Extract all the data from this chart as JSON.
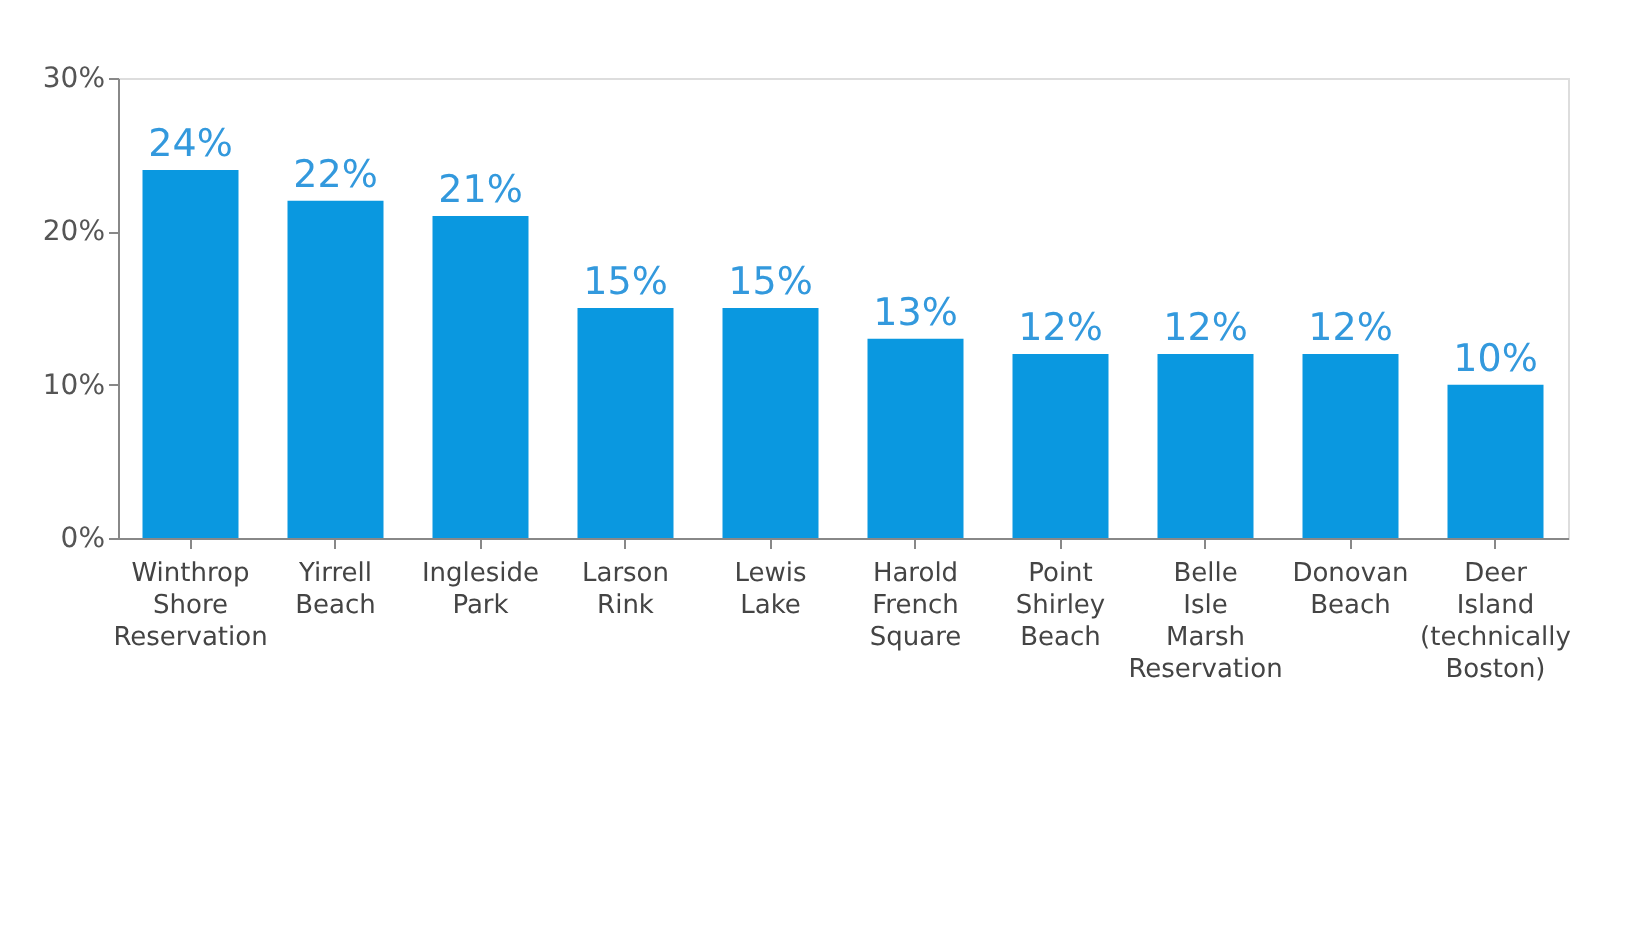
{
  "chart_data": {
    "type": "bar",
    "categories": [
      "Winthrop Shore Reservation",
      "Yirrell Beach",
      "Ingleside Park",
      "Larson Rink",
      "Lewis Lake",
      "Harold French Square",
      "Point Shirley Beach",
      "Belle Isle Marsh Reservation",
      "Donovan Beach",
      "Deer Island (technically Boston)"
    ],
    "values": [
      24,
      22,
      21,
      15,
      15,
      13,
      12,
      12,
      12,
      10
    ],
    "color": "#0a98e0",
    "ylim": [
      0,
      30
    ],
    "yticks": [
      {
        "value": 0,
        "label": "0%"
      },
      {
        "value": 10,
        "label": "10%"
      },
      {
        "value": 20,
        "label": "20%"
      },
      {
        "value": 30,
        "label": "30%"
      }
    ],
    "value_labels": [
      "24%",
      "22%",
      "21%",
      "15%",
      "15%",
      "13%",
      "12%",
      "12%",
      "12%",
      "10%"
    ],
    "grid": false
  }
}
